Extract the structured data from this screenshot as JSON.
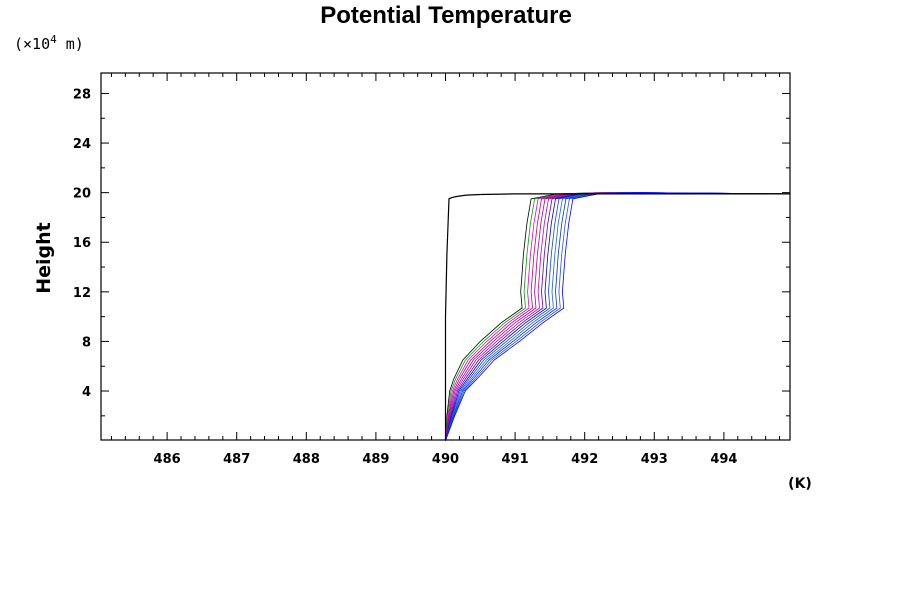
{
  "chart_data": {
    "type": "line",
    "title": "Potential Temperature",
    "ylabel": "Height",
    "yunit_prefix": "(×10",
    "yunit_exp": "4",
    "yunit_suffix": " m)",
    "xunit": "(K)",
    "xlim": [
      485.05,
      494.95
    ],
    "ylim": [
      0.05,
      29.65
    ],
    "x_ticks": [
      486,
      487,
      488,
      489,
      490,
      491,
      492,
      493,
      494
    ],
    "y_ticks": [
      4,
      8,
      12,
      16,
      20,
      24,
      28
    ],
    "grid": false,
    "series_colors": {
      "reference": "#000000",
      "ensemble": [
        "#000000",
        "#00a000",
        "#e000e0",
        "#c00070",
        "#a000a0",
        "#c000c0",
        "#6000a0",
        "#0000c0",
        "#1040e0",
        "#1060ff",
        "#0030d0",
        "#2050ff",
        "#0000ff"
      ]
    },
    "series": [
      {
        "x": [
          490.0,
          490.0,
          490.0,
          490.0,
          490.02,
          490.04,
          490.05,
          490.09,
          490.17,
          490.3,
          490.5
        ],
        "y": [
          0,
          2,
          5,
          10,
          15,
          18,
          19.5,
          19.6,
          19.7,
          19.8,
          19.85
        ]
      },
      {
        "x": [
          490.5,
          491.0,
          492.0,
          493.0,
          494.0,
          494.95
        ],
        "y": [
          19.85,
          19.9,
          19.9,
          19.9,
          19.9,
          19.9
        ]
      }
    ],
    "ensemble_shape": {
      "x_offsets": [
        490.0,
        490.02,
        490.06,
        490.12,
        490.25,
        490.5,
        490.8,
        491.1,
        491.08,
        491.1,
        491.12,
        491.15,
        491.17,
        491.2,
        491.23,
        491.6,
        492.2
      ],
      "y": [
        0,
        2,
        4,
        5,
        6.5,
        8,
        9.5,
        10.7,
        12,
        13.5,
        15,
        16.5,
        17.5,
        18.5,
        19.5,
        19.9,
        20.0
      ],
      "shift_start": 0,
      "shift_step": 0.05,
      "count": 13
    }
  }
}
